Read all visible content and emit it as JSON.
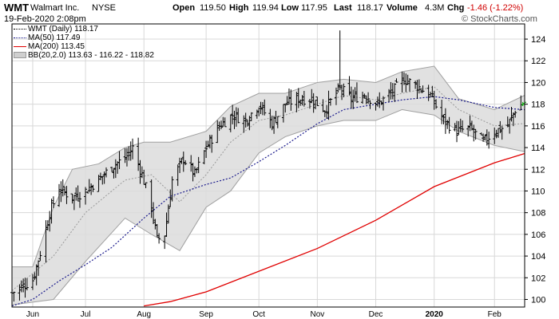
{
  "header": {
    "symbol": "WMT",
    "company": "Walmart Inc.",
    "exchange": "NYSE",
    "date": "19-Feb-2020 2:08pm",
    "open_label": "Open",
    "open": "119.50",
    "high_label": "High",
    "high": "119.94",
    "low_label": "Low",
    "low": "117.95",
    "last_label": "Last",
    "last": "118.17",
    "volume_label": "Volume",
    "volume": "4.3M",
    "chg_label": "Chg",
    "chg": "-1.46 (-1.22%)",
    "watermark": "© StockCharts.com"
  },
  "legend": {
    "price": "WMT (Daily) 118.17",
    "ma50": "MA(50) 117.49",
    "ma200": "MA(200) 113.45",
    "bb": "BB(20,2.0) 113.63 - 116.22 - 118.82"
  },
  "colors": {
    "price": "#000000",
    "ma50": "#1a1a8c",
    "ma200": "#e00000",
    "bb_fill": "#dcdcdc",
    "bb_line": "#a0a0a0",
    "up_bar": "#00aa00",
    "grid": "#d8d8d8"
  },
  "chart_data": {
    "type": "line",
    "chart_style": "ohlc-bars",
    "ylim": [
      99.3,
      125.4
    ],
    "yticks": [
      100,
      102,
      104,
      106,
      108,
      110,
      112,
      114,
      116,
      118,
      120,
      122,
      124
    ],
    "x_tick_labels": [
      "Jun",
      "Jul",
      "Aug",
      "Sep",
      "Oct",
      "Nov",
      "Dec",
      "2020",
      "Feb"
    ],
    "x_tick_dates": [
      "2019-06-03",
      "2019-07-01",
      "2019-08-01",
      "2019-09-03",
      "2019-10-01",
      "2019-11-01",
      "2019-12-02",
      "2020-01-02",
      "2020-02-03"
    ],
    "x_start": "2019-05-23",
    "x_end": "2020-02-19",
    "series": [
      {
        "name": "WMT (Daily)",
        "kind": "price-close",
        "points": [
          [
            "2019-05-23",
            100.6
          ],
          [
            "2019-06-03",
            101.8
          ],
          [
            "2019-06-07",
            104.3
          ],
          [
            "2019-06-12",
            108.0
          ],
          [
            "2019-06-17",
            110.2
          ],
          [
            "2019-06-24",
            109.4
          ],
          [
            "2019-07-01",
            110.0
          ],
          [
            "2019-07-09",
            111.2
          ],
          [
            "2019-07-16",
            112.4
          ],
          [
            "2019-07-22",
            113.0
          ],
          [
            "2019-07-26",
            114.0
          ],
          [
            "2019-07-31",
            111.5
          ],
          [
            "2019-08-05",
            108.5
          ],
          [
            "2019-08-08",
            105.5
          ],
          [
            "2019-08-12",
            106.0
          ],
          [
            "2019-08-16",
            111.0
          ],
          [
            "2019-08-22",
            113.0
          ],
          [
            "2019-08-28",
            111.5
          ],
          [
            "2019-09-03",
            114.0
          ],
          [
            "2019-09-10",
            116.0
          ],
          [
            "2019-09-17",
            117.0
          ],
          [
            "2019-09-24",
            116.5
          ],
          [
            "2019-10-01",
            118.0
          ],
          [
            "2019-10-08",
            116.2
          ],
          [
            "2019-10-15",
            118.0
          ],
          [
            "2019-10-22",
            118.5
          ],
          [
            "2019-10-29",
            118.5
          ],
          [
            "2019-11-05",
            117.5
          ],
          [
            "2019-11-13",
            119.5
          ],
          [
            "2019-11-19",
            118.5
          ],
          [
            "2019-11-26",
            118.9
          ],
          [
            "2019-12-03",
            118.0
          ],
          [
            "2019-12-10",
            119.0
          ],
          [
            "2019-12-17",
            120.3
          ],
          [
            "2019-12-23",
            119.8
          ],
          [
            "2019-12-31",
            118.8
          ],
          [
            "2020-01-07",
            116.5
          ],
          [
            "2020-01-14",
            115.5
          ],
          [
            "2020-01-21",
            115.8
          ],
          [
            "2020-01-28",
            114.5
          ],
          [
            "2020-02-03",
            115.5
          ],
          [
            "2020-02-10",
            116.0
          ],
          [
            "2020-02-14",
            117.5
          ],
          [
            "2020-02-19",
            118.2
          ]
        ]
      },
      {
        "name": "MA(50)",
        "points": [
          [
            "2019-05-23",
            99.4
          ],
          [
            "2019-06-03",
            100.0
          ],
          [
            "2019-06-17",
            101.7
          ],
          [
            "2019-07-01",
            103.2
          ],
          [
            "2019-07-15",
            104.8
          ],
          [
            "2019-08-01",
            107.5
          ],
          [
            "2019-08-15",
            109.5
          ],
          [
            "2019-09-03",
            110.6
          ],
          [
            "2019-09-16",
            111.2
          ],
          [
            "2019-10-01",
            112.7
          ],
          [
            "2019-10-15",
            114.2
          ],
          [
            "2019-11-01",
            116.2
          ],
          [
            "2019-11-15",
            117.5
          ],
          [
            "2019-12-02",
            118.0
          ],
          [
            "2019-12-16",
            118.4
          ],
          [
            "2020-01-02",
            118.7
          ],
          [
            "2020-01-15",
            118.4
          ],
          [
            "2020-02-03",
            117.7
          ],
          [
            "2020-02-19",
            117.49
          ]
        ]
      },
      {
        "name": "MA(200)",
        "points": [
          [
            "2019-08-01",
            99.4
          ],
          [
            "2019-08-15",
            99.8
          ],
          [
            "2019-09-03",
            100.7
          ],
          [
            "2019-10-01",
            102.6
          ],
          [
            "2019-11-01",
            104.7
          ],
          [
            "2019-12-02",
            107.3
          ],
          [
            "2020-01-02",
            110.4
          ],
          [
            "2020-02-03",
            112.6
          ],
          [
            "2020-02-19",
            113.45
          ]
        ]
      },
      {
        "name": "BB(20,2.0)",
        "kind": "band",
        "upper": [
          [
            "2019-05-23",
            103.0
          ],
          [
            "2019-06-03",
            103.0
          ],
          [
            "2019-06-14",
            108.5
          ],
          [
            "2019-06-24",
            112.0
          ],
          [
            "2019-07-08",
            112.5
          ],
          [
            "2019-07-22",
            114.0
          ],
          [
            "2019-08-01",
            114.5
          ],
          [
            "2019-08-15",
            114.5
          ],
          [
            "2019-09-03",
            115.5
          ],
          [
            "2019-09-16",
            117.8
          ],
          [
            "2019-10-01",
            119.0
          ],
          [
            "2019-10-15",
            119.0
          ],
          [
            "2019-11-01",
            120.0
          ],
          [
            "2019-11-15",
            120.3
          ],
          [
            "2019-12-02",
            120.0
          ],
          [
            "2019-12-16",
            121.0
          ],
          [
            "2020-01-02",
            121.5
          ],
          [
            "2020-01-15",
            118.5
          ],
          [
            "2020-02-03",
            117.5
          ],
          [
            "2020-02-19",
            118.82
          ]
        ],
        "middle": [
          [
            "2019-05-23",
            100.8
          ],
          [
            "2019-06-14",
            104.0
          ],
          [
            "2019-07-01",
            108.0
          ],
          [
            "2019-07-22",
            111.0
          ],
          [
            "2019-08-05",
            111.5
          ],
          [
            "2019-08-20",
            109.0
          ],
          [
            "2019-09-03",
            111.5
          ],
          [
            "2019-09-16",
            114.5
          ],
          [
            "2019-10-01",
            116.5
          ],
          [
            "2019-10-15",
            117.0
          ],
          [
            "2019-11-01",
            118.0
          ],
          [
            "2019-11-15",
            118.8
          ],
          [
            "2019-12-02",
            118.4
          ],
          [
            "2019-12-16",
            119.0
          ],
          [
            "2020-01-02",
            119.6
          ],
          [
            "2020-01-15",
            117.5
          ],
          [
            "2020-02-03",
            116.0
          ],
          [
            "2020-02-19",
            116.22
          ]
        ],
        "lower": [
          [
            "2019-05-23",
            99.5
          ],
          [
            "2019-06-14",
            100.0
          ],
          [
            "2019-07-01",
            103.5
          ],
          [
            "2019-07-22",
            107.5
          ],
          [
            "2019-08-05",
            106.0
          ],
          [
            "2019-08-20",
            104.5
          ],
          [
            "2019-09-03",
            108.5
          ],
          [
            "2019-09-16",
            110.0
          ],
          [
            "2019-10-01",
            113.5
          ],
          [
            "2019-10-15",
            115.0
          ],
          [
            "2019-11-01",
            116.0
          ],
          [
            "2019-11-15",
            116.5
          ],
          [
            "2019-12-02",
            116.5
          ],
          [
            "2019-12-16",
            117.5
          ],
          [
            "2020-01-02",
            117.0
          ],
          [
            "2020-01-15",
            115.5
          ],
          [
            "2020-02-03",
            114.2
          ],
          [
            "2020-02-19",
            113.63
          ]
        ]
      }
    ],
    "annotations": {
      "spike_high": [
        "2019-11-13",
        124.8
      ],
      "last_bar_up": [
        "2020-02-19",
        119.94
      ]
    }
  }
}
